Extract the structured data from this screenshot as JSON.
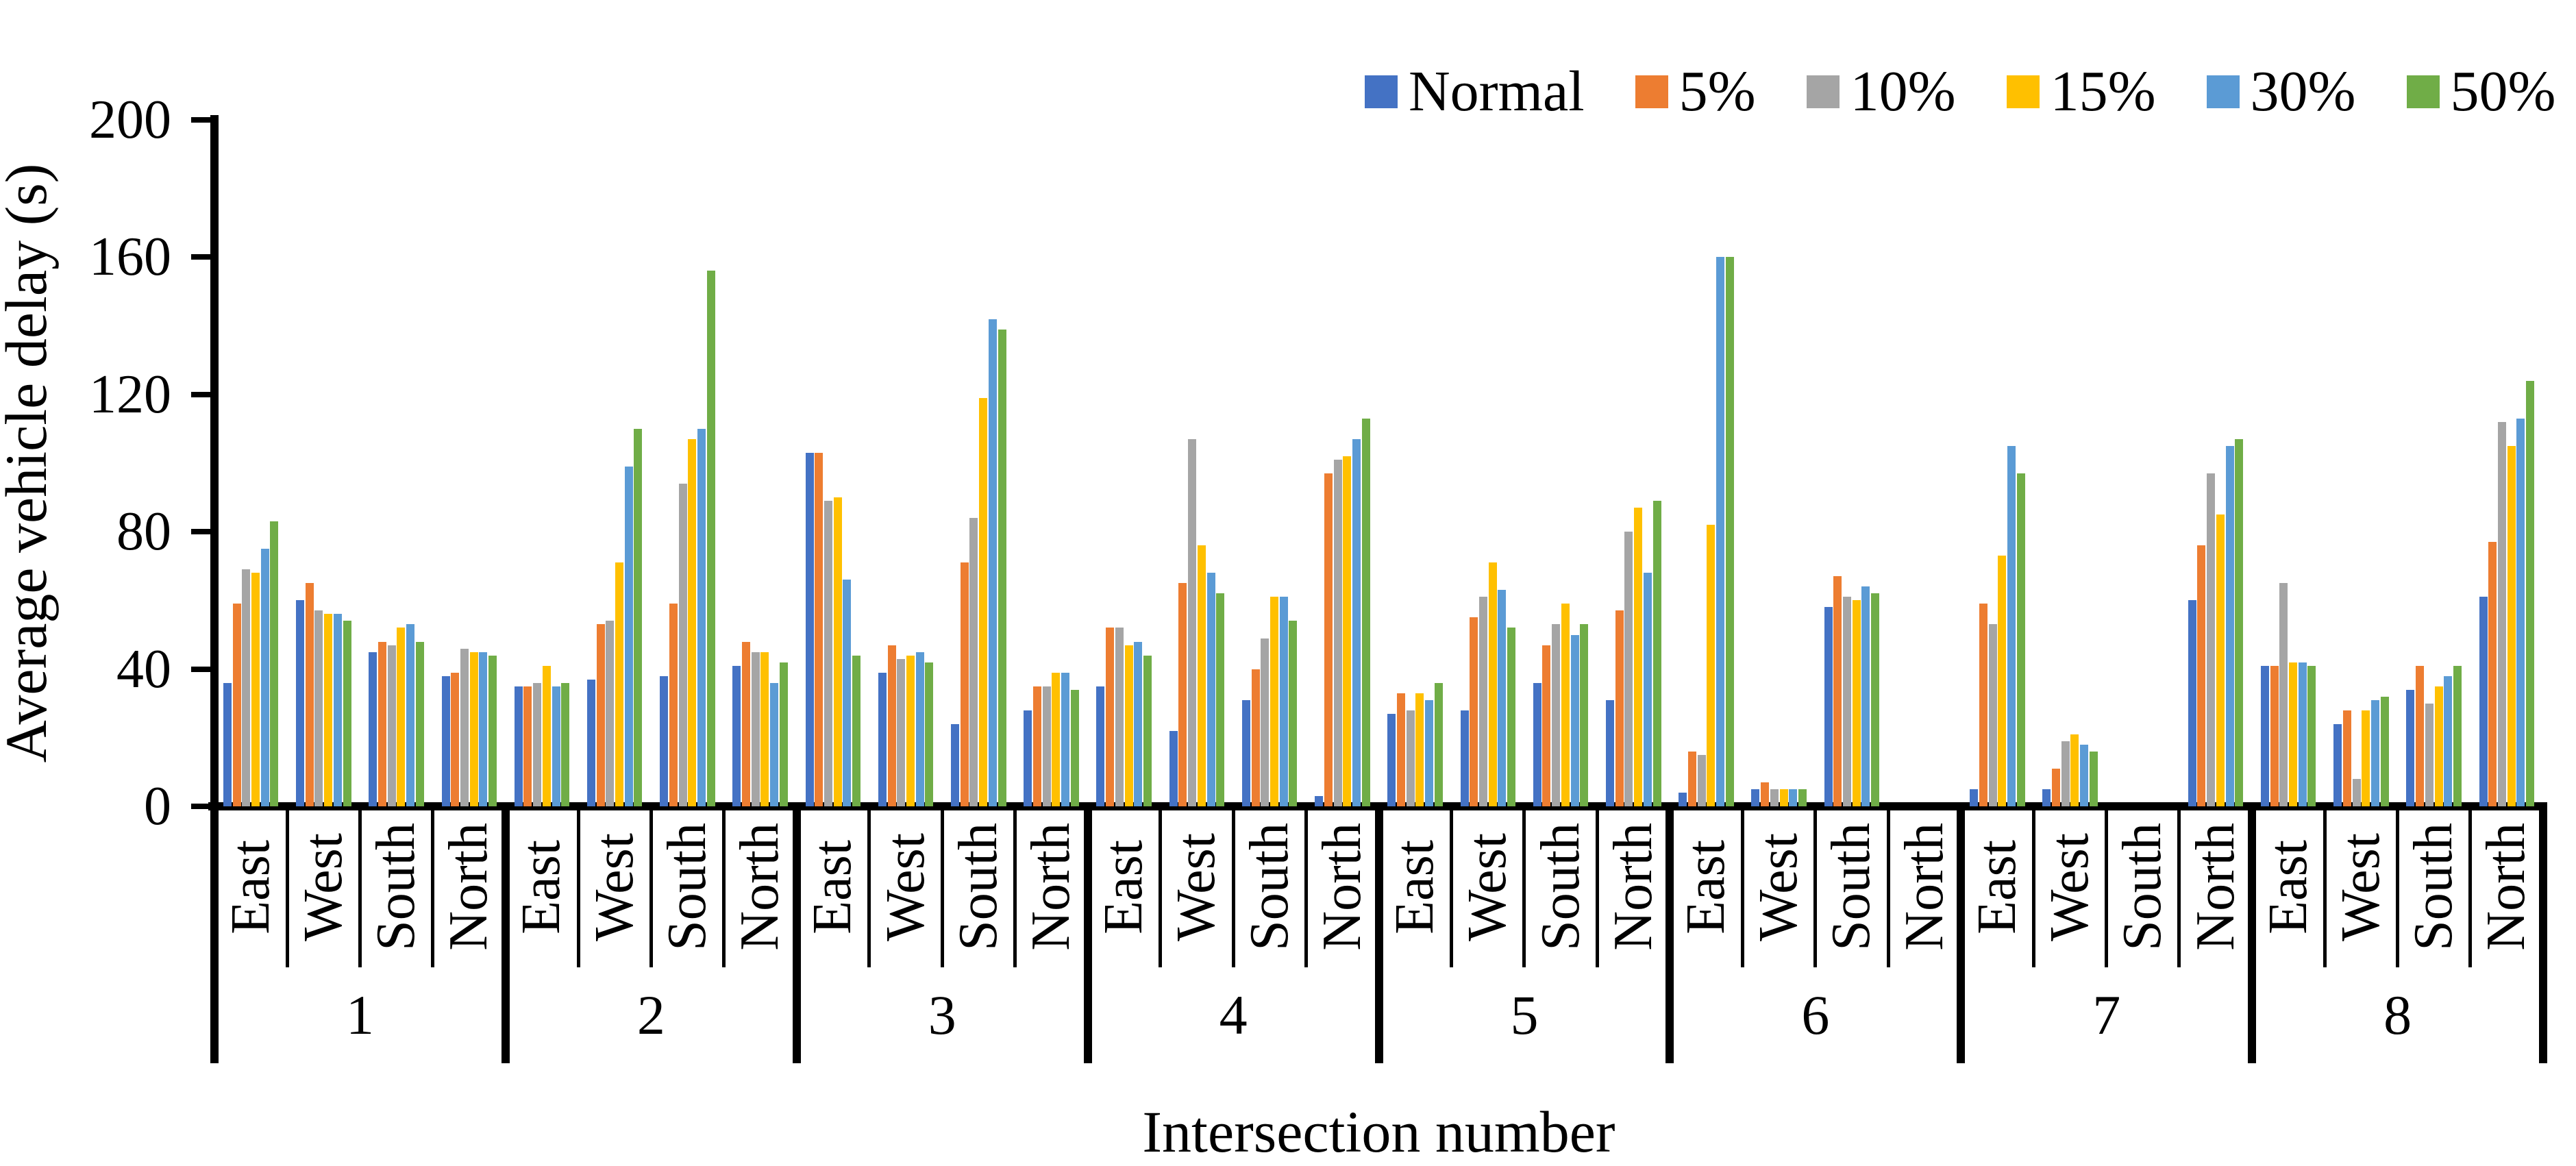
{
  "chart_data": {
    "type": "bar",
    "title": "",
    "ylabel": "Average vehicle delay (s)",
    "xlabel": "Intersection number",
    "ylim": [
      0,
      200
    ],
    "y_ticks": [
      0,
      40,
      80,
      120,
      160,
      200
    ],
    "grid": false,
    "legend_position": "top-right",
    "groups": [
      "1",
      "2",
      "3",
      "4",
      "5",
      "6",
      "7",
      "8"
    ],
    "directions": [
      "East",
      "West",
      "South",
      "North"
    ],
    "series": [
      {
        "name": "Normal",
        "color": "#4472C4",
        "values": [
          [
            36,
            60,
            45,
            38
          ],
          [
            35,
            37,
            38,
            41
          ],
          [
            103,
            39,
            24,
            28
          ],
          [
            35,
            22,
            31,
            3
          ],
          [
            27,
            28,
            36,
            31
          ],
          [
            4,
            5,
            58,
            0
          ],
          [
            5,
            5,
            0,
            60
          ],
          [
            41,
            24,
            34,
            61
          ]
        ]
      },
      {
        "name": "5%",
        "color": "#ED7D31",
        "values": [
          [
            59,
            65,
            48,
            39
          ],
          [
            35,
            53,
            59,
            48
          ],
          [
            103,
            47,
            71,
            35
          ],
          [
            52,
            65,
            40,
            97
          ],
          [
            33,
            55,
            47,
            57
          ],
          [
            16,
            7,
            67,
            0
          ],
          [
            59,
            11,
            0,
            76
          ],
          [
            41,
            28,
            41,
            77
          ]
        ]
      },
      {
        "name": "10%",
        "color": "#A5A5A5",
        "values": [
          [
            69,
            57,
            47,
            46
          ],
          [
            36,
            54,
            94,
            45
          ],
          [
            89,
            43,
            84,
            35
          ],
          [
            52,
            107,
            49,
            101
          ],
          [
            28,
            61,
            53,
            80
          ],
          [
            15,
            5,
            61,
            0
          ],
          [
            53,
            19,
            0,
            97
          ],
          [
            65,
            8,
            30,
            112
          ]
        ]
      },
      {
        "name": "15%",
        "color": "#FFC000",
        "values": [
          [
            68,
            56,
            52,
            45
          ],
          [
            41,
            71,
            107,
            45
          ],
          [
            90,
            44,
            119,
            39
          ],
          [
            47,
            76,
            61,
            102
          ],
          [
            33,
            71,
            59,
            87
          ],
          [
            82,
            5,
            60,
            0
          ],
          [
            73,
            21,
            0,
            85
          ],
          [
            42,
            28,
            35,
            105
          ]
        ]
      },
      {
        "name": "30%",
        "color": "#5B9BD5",
        "values": [
          [
            75,
            56,
            53,
            45
          ],
          [
            35,
            99,
            110,
            36
          ],
          [
            66,
            45,
            142,
            39
          ],
          [
            48,
            68,
            61,
            107
          ],
          [
            31,
            63,
            50,
            68
          ],
          [
            160,
            5,
            64,
            0
          ],
          [
            105,
            18,
            0,
            105
          ],
          [
            42,
            31,
            38,
            113
          ]
        ]
      },
      {
        "name": "50%",
        "color": "#70AD47",
        "values": [
          [
            83,
            54,
            48,
            44
          ],
          [
            36,
            110,
            156,
            42
          ],
          [
            44,
            42,
            139,
            34
          ],
          [
            44,
            62,
            54,
            113
          ],
          [
            36,
            52,
            53,
            89
          ],
          [
            160,
            5,
            62,
            0
          ],
          [
            97,
            16,
            0,
            107
          ],
          [
            41,
            32,
            41,
            124
          ]
        ]
      }
    ]
  }
}
